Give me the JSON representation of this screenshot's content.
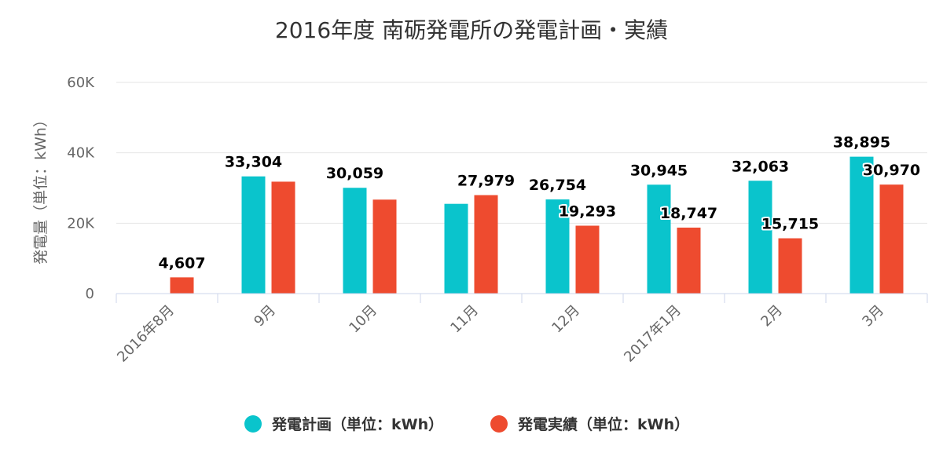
{
  "chart_data": {
    "type": "bar",
    "title": "2016年度 南砺発電所の発電計画・実績",
    "ylabel": "発電量（単位：kWh）",
    "xlabel": "",
    "ylim": [
      0,
      60000
    ],
    "y_ticks": [
      {
        "value": 0,
        "label": "0"
      },
      {
        "value": 20000,
        "label": "20K"
      },
      {
        "value": 40000,
        "label": "40K"
      },
      {
        "value": 60000,
        "label": "60K"
      }
    ],
    "categories": [
      "2016年8月",
      "9月",
      "10月",
      "11月",
      "12月",
      "2017年1月",
      "2月",
      "3月"
    ],
    "series": [
      {
        "name": "発電計画（単位：kWh）",
        "color": "#0ac4cc",
        "values": [
          null,
          33304,
          30059,
          25500,
          26754,
          30945,
          32063,
          38895
        ],
        "labels": [
          "",
          "33,304",
          "30,059",
          "",
          "26,754",
          "30,945",
          "32,063",
          "38,895"
        ]
      },
      {
        "name": "発電実績（単位：kWh）",
        "color": "#ee4b2f",
        "values": [
          4607,
          31800,
          26700,
          27979,
          19293,
          18747,
          15715,
          30970
        ],
        "labels": [
          "4,607",
          "",
          "",
          "27,979",
          "19,293",
          "18,747",
          "15,715",
          "30,970"
        ]
      }
    ],
    "grid": true,
    "legend_position": "bottom-center"
  }
}
